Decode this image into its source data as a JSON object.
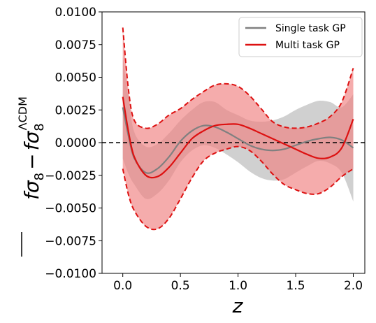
{
  "chart_data": {
    "type": "line",
    "title": "",
    "xlabel": "z",
    "ylabel": {
      "main": "fσ",
      "sub": "8",
      "minus": "−",
      "ref_main": "fσ",
      "ref_sub": "8",
      "ref_sup": "ΛCDM"
    },
    "xlim": [
      -0.18,
      2.1
    ],
    "ylim": [
      -0.01,
      0.01
    ],
    "x_ticks": [
      {
        "value": 0.0,
        "label": "0.0"
      },
      {
        "value": 0.5,
        "label": "0.5"
      },
      {
        "value": 1.0,
        "label": "1.0"
      },
      {
        "value": 1.5,
        "label": "1.5"
      },
      {
        "value": 2.0,
        "label": "2.0"
      }
    ],
    "y_ticks": [
      {
        "value": 0.01,
        "label": "0.0100"
      },
      {
        "value": 0.0075,
        "label": "0.0075"
      },
      {
        "value": 0.005,
        "label": "0.0050"
      },
      {
        "value": 0.0025,
        "label": "0.0025"
      },
      {
        "value": 0.0,
        "label": "0.0000"
      },
      {
        "value": -0.0025,
        "label": "−0.0025"
      },
      {
        "value": -0.005,
        "label": "−0.0050"
      },
      {
        "value": -0.0075,
        "label": "−0.0075"
      },
      {
        "value": -0.01,
        "label": "−0.0100"
      }
    ],
    "grid": false,
    "legend_position": "top-right",
    "reference_line": {
      "y": 0.0,
      "style": "dashed",
      "color": "#000000"
    },
    "series": [
      {
        "name": "Single task GP",
        "color": "#808080",
        "band_color": "#a9a9a9",
        "x": [
          0.0,
          0.05,
          0.1,
          0.2,
          0.3,
          0.4,
          0.5,
          0.6,
          0.7,
          0.8,
          0.9,
          1.0,
          1.1,
          1.2,
          1.3,
          1.4,
          1.5,
          1.6,
          1.7,
          1.8,
          1.9,
          2.0
        ],
        "mean": [
          0.0027,
          0.0005,
          -0.0012,
          -0.0023,
          -0.002,
          -0.0011,
          0.0001,
          0.0009,
          0.0013,
          0.0012,
          0.0008,
          0.0003,
          -0.0002,
          -0.0005,
          -0.0006,
          -0.0005,
          -0.0002,
          0.0001,
          0.0003,
          0.0004,
          0.0002,
          -0.0004
        ],
        "lower": [
          -0.0012,
          -0.0024,
          -0.0032,
          -0.0043,
          -0.0039,
          -0.0029,
          -0.0015,
          -0.0006,
          -0.0002,
          -0.0004,
          -0.0009,
          -0.0015,
          -0.0022,
          -0.0027,
          -0.0029,
          -0.0028,
          -0.0023,
          -0.0018,
          -0.0014,
          -0.0016,
          -0.0023,
          -0.0045
        ],
        "upper": [
          0.0066,
          0.0034,
          0.0008,
          -0.0003,
          -0.0001,
          0.0007,
          0.0017,
          0.0025,
          0.0031,
          0.0031,
          0.0025,
          0.0021,
          0.0017,
          0.0016,
          0.0017,
          0.002,
          0.0025,
          0.0029,
          0.0032,
          0.0031,
          0.0027,
          0.0037
        ]
      },
      {
        "name": "Multi task GP",
        "color": "#dd1111",
        "band_color": "#f08080",
        "x": [
          0.0,
          0.05,
          0.1,
          0.2,
          0.3,
          0.4,
          0.5,
          0.6,
          0.7,
          0.8,
          0.9,
          1.0,
          1.1,
          1.2,
          1.3,
          1.4,
          1.5,
          1.6,
          1.7,
          1.8,
          1.9,
          2.0
        ],
        "mean": [
          0.0035,
          0.0008,
          -0.0011,
          -0.0025,
          -0.0026,
          -0.0019,
          -0.0008,
          0.0003,
          0.0009,
          0.0013,
          0.0014,
          0.0014,
          0.0011,
          0.0007,
          0.0003,
          -0.0001,
          -0.0005,
          -0.0009,
          -0.0012,
          -0.0011,
          -0.0004,
          0.0018
        ],
        "lower": [
          -0.002,
          -0.004,
          -0.0052,
          -0.0064,
          -0.0066,
          -0.0058,
          -0.0043,
          -0.0027,
          -0.0014,
          -0.0008,
          -0.0005,
          -0.0003,
          -0.0006,
          -0.0014,
          -0.0024,
          -0.0032,
          -0.0036,
          -0.0039,
          -0.0039,
          -0.0034,
          -0.0026,
          -0.002
        ],
        "upper": [
          0.0088,
          0.004,
          0.0017,
          0.0011,
          0.0014,
          0.0021,
          0.0026,
          0.0033,
          0.0039,
          0.0044,
          0.0045,
          0.0043,
          0.0036,
          0.0026,
          0.0016,
          0.0012,
          0.0011,
          0.0012,
          0.0015,
          0.002,
          0.0031,
          0.0057
        ]
      }
    ]
  }
}
